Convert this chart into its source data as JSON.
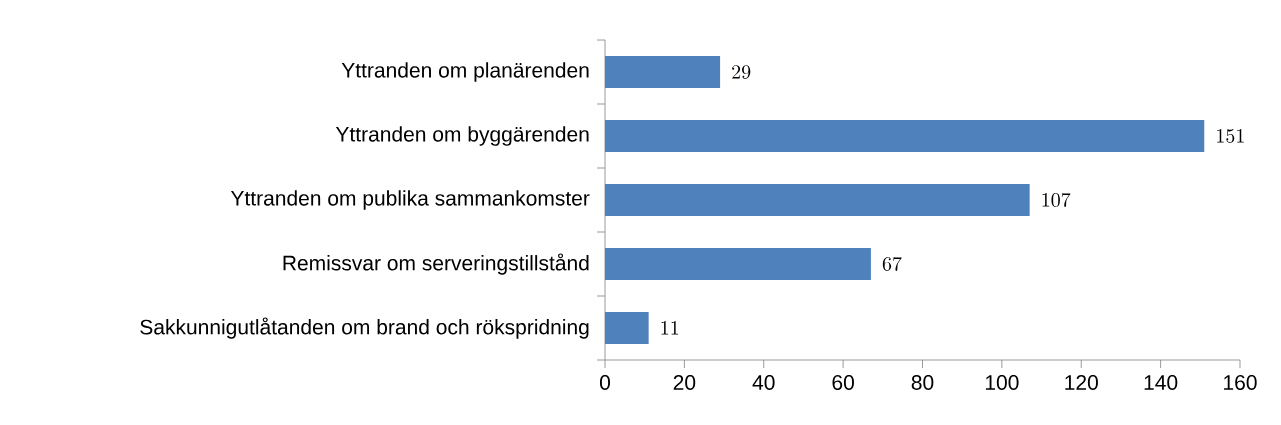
{
  "chart_data": {
    "type": "bar",
    "orientation": "horizontal",
    "categories": [
      "Yttranden om planärenden",
      "Yttranden om byggärenden",
      "Yttranden om publika sammankomster",
      "Remissvar om serveringstillstånd",
      "Sakkunnigutlåtanden om brand och rökspridning"
    ],
    "values": [
      29,
      151,
      107,
      67,
      11
    ],
    "color": "#4f81bd",
    "xlim": [
      0,
      160
    ],
    "xticks": [
      0,
      20,
      40,
      60,
      80,
      100,
      120,
      140,
      160
    ],
    "data_labels": true
  }
}
